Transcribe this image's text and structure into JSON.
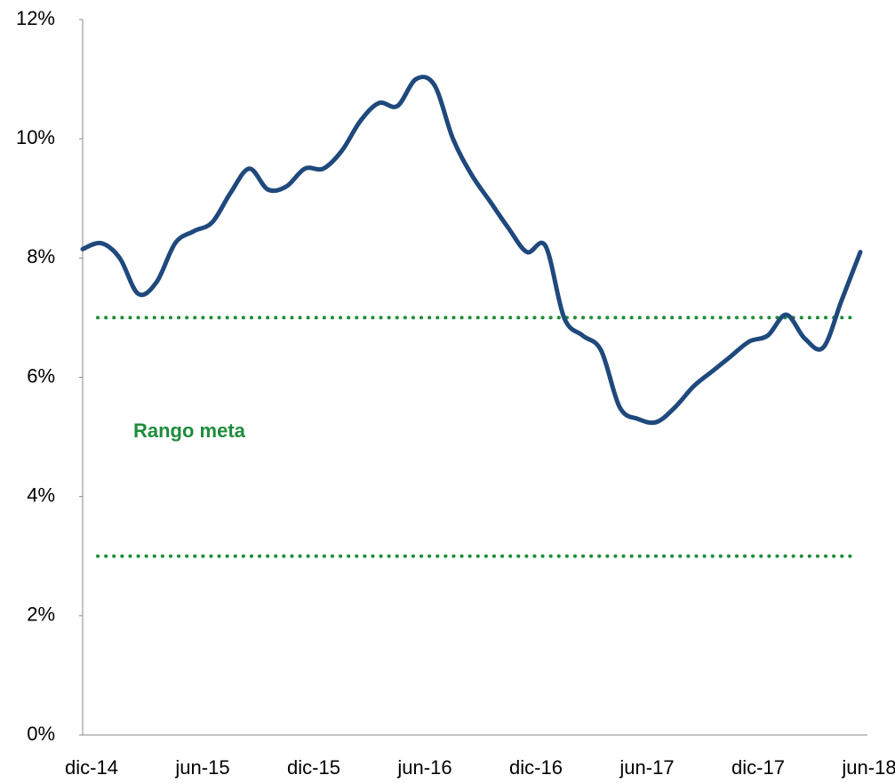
{
  "chart_data": {
    "type": "line",
    "categories": [
      "dic-14",
      null,
      null,
      null,
      null,
      null,
      "jun-15",
      null,
      null,
      null,
      null,
      null,
      "dic-15",
      null,
      null,
      null,
      null,
      null,
      "jun-16",
      null,
      null,
      null,
      null,
      null,
      "dic-16",
      null,
      null,
      null,
      null,
      null,
      "jun-17",
      null,
      null,
      null,
      null,
      null,
      "dic-17",
      null,
      null,
      null,
      null,
      null,
      "jun-18"
    ],
    "series": [
      {
        "color": "#1f497d",
        "values": [
          8.15,
          8.25,
          8.0,
          7.4,
          7.6,
          8.25,
          8.45,
          8.6,
          9.1,
          9.5,
          9.15,
          9.2,
          9.5,
          9.5,
          9.8,
          10.3,
          10.6,
          10.55,
          11.0,
          10.9,
          10.0,
          9.4,
          8.95,
          8.5,
          8.1,
          8.2,
          7.0,
          6.7,
          6.45,
          5.5,
          5.3,
          5.25,
          5.5,
          5.85,
          6.1,
          6.35,
          6.6,
          6.7,
          7.05,
          6.65,
          6.5,
          7.3,
          8.1
        ]
      }
    ],
    "ylim": [
      0,
      12
    ],
    "yticks": [
      {
        "value": 0,
        "label": "0%"
      },
      {
        "value": 2,
        "label": "2%"
      },
      {
        "value": 4,
        "label": "4%"
      },
      {
        "value": 6,
        "label": "6%"
      },
      {
        "value": 8,
        "label": "8%"
      },
      {
        "value": 10,
        "label": "10%"
      },
      {
        "value": 12,
        "label": "12%"
      }
    ],
    "reference_lines": {
      "color": "#1e8c3c",
      "values": [
        7,
        3
      ]
    },
    "annotation": "Rango meta",
    "grid": false
  }
}
